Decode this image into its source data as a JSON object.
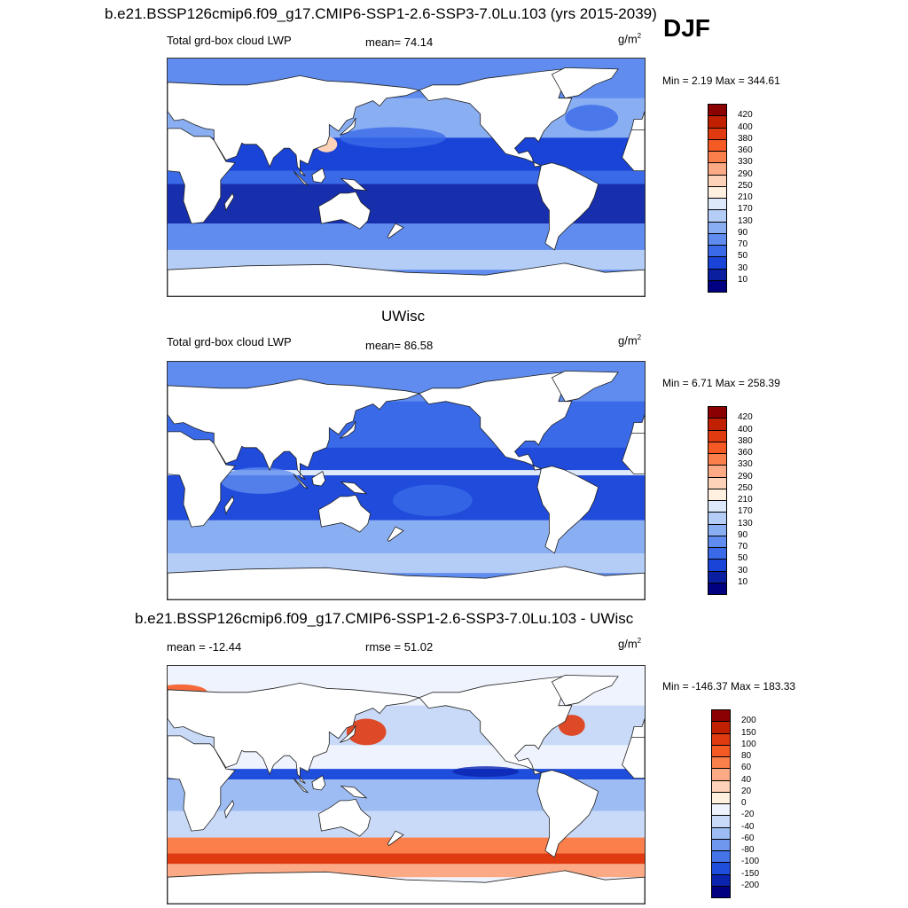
{
  "header": {
    "title": "b.e21.BSSP126cmip6.f09_g17.CMIP6-SSP1-2.6-SSP3-7.0Lu.103 (yrs 2015-2039)",
    "season": "DJF"
  },
  "panels": [
    {
      "id": "case",
      "title": "",
      "left_label": "Total grd-box cloud LWP",
      "center_label": "mean=  74.14",
      "units_base": "g/m",
      "units_exp": "2",
      "minmax": "Min =   2.19 Max = 344.61",
      "colorbar": {
        "labels": [
          "420",
          "400",
          "380",
          "360",
          "330",
          "290",
          "250",
          "210",
          "170",
          "130",
          "90",
          "70",
          "50",
          "30",
          "10"
        ],
        "colors": [
          "#8b0000",
          "#c02000",
          "#e03a10",
          "#f55a25",
          "#fb7f4a",
          "#fcaa85",
          "#fdd2b8",
          "#fff0e0",
          "#dde9fb",
          "#b4cdf7",
          "#8aaef2",
          "#5f8cee",
          "#3a6ae8",
          "#1a44d8",
          "#0a1ea0",
          "#000080"
        ]
      },
      "field": {
        "description": "cloud liquid water path"
      }
    },
    {
      "id": "obs",
      "title": "UWisc",
      "left_label": "Total grd-box cloud LWP",
      "center_label": "mean=  86.58",
      "units_base": "g/m",
      "units_exp": "2",
      "minmax": "Min =   6.71 Max = 258.39",
      "colorbar": {
        "labels": [
          "420",
          "400",
          "380",
          "360",
          "330",
          "290",
          "250",
          "210",
          "170",
          "130",
          "90",
          "70",
          "50",
          "30",
          "10"
        ],
        "colors": [
          "#8b0000",
          "#c02000",
          "#e03a10",
          "#f55a25",
          "#fb7f4a",
          "#fcaa85",
          "#fdd2b8",
          "#fff0e0",
          "#dde9fb",
          "#b4cdf7",
          "#8aaef2",
          "#5f8cee",
          "#3a6ae8",
          "#1a44d8",
          "#0a1ea0",
          "#000080"
        ]
      }
    },
    {
      "id": "diff",
      "title": "b.e21.BSSP126cmip6.f09_g17.CMIP6-SSP1-2.6-SSP3-7.0Lu.103 - UWisc",
      "left_label": "mean = -12.44",
      "center_label": "rmse =  51.02",
      "units_base": "g/m",
      "units_exp": "2",
      "minmax": "Min = -146.37 Max = 183.33",
      "colorbar": {
        "labels": [
          "200",
          "150",
          "100",
          "80",
          "60",
          "40",
          "20",
          "0",
          "-20",
          "-40",
          "-60",
          "-80",
          "-100",
          "-150",
          "-200"
        ],
        "colors": [
          "#8b0000",
          "#c02000",
          "#e03a10",
          "#f55a25",
          "#fb7f4a",
          "#fcaa85",
          "#fdd2b8",
          "#fff0e0",
          "#eef3fd",
          "#c8daf8",
          "#9dbcf3",
          "#6f97ee",
          "#4574e8",
          "#1f4ddc",
          "#0a24b0",
          "#000080"
        ]
      }
    }
  ]
}
